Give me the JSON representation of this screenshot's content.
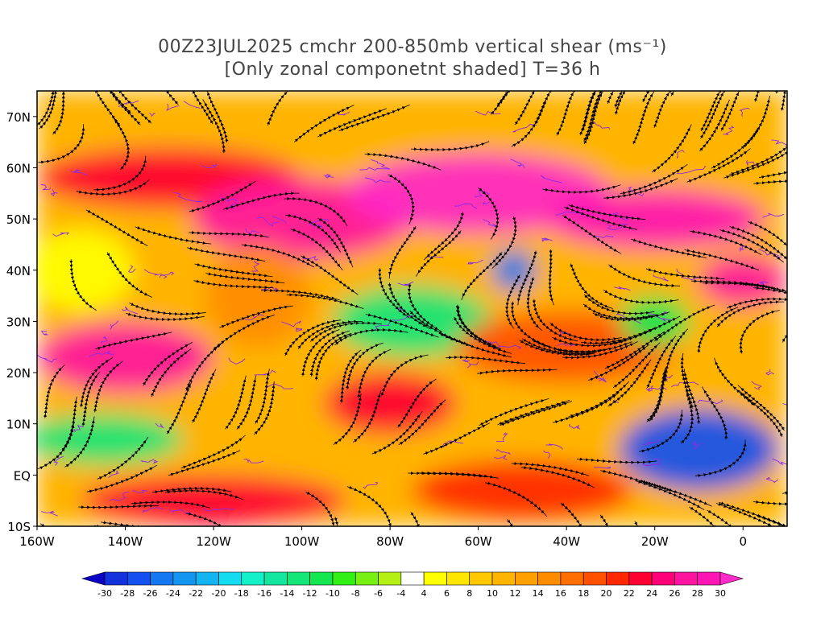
{
  "title": {
    "line1": "00Z23JUL2025 cmchr 200-850mb vertical shear (ms⁻¹)",
    "line2": "[Only zonal componetnt shaded] T=36 h"
  },
  "map": {
    "lat_range": [
      -10,
      75
    ],
    "lon_range": [
      -160,
      10
    ],
    "lat_ticks": [
      "70N",
      "60N",
      "50N",
      "40N",
      "30N",
      "20N",
      "10N",
      "EQ",
      "10S"
    ],
    "lat_values": [
      70,
      60,
      50,
      40,
      30,
      20,
      10,
      0,
      -10
    ],
    "lon_ticks": [
      "160W",
      "140W",
      "120W",
      "100W",
      "80W",
      "60W",
      "40W",
      "20W",
      "0"
    ],
    "lon_values": [
      -160,
      -140,
      -120,
      -100,
      -80,
      -60,
      -40,
      -20,
      0
    ]
  },
  "colorbar": {
    "labels": [
      "-30",
      "-28",
      "-26",
      "-24",
      "-22",
      "-20",
      "-18",
      "-16",
      "-14",
      "-12",
      "-10",
      "-8",
      "-6",
      "-4",
      "4",
      "6",
      "8",
      "10",
      "12",
      "14",
      "16",
      "18",
      "20",
      "22",
      "24",
      "26",
      "28",
      "30"
    ],
    "colors": [
      "#0a00c8",
      "#1432dc",
      "#1450f0",
      "#1478f0",
      "#1496f0",
      "#14b4f0",
      "#14dcf0",
      "#14f0c8",
      "#14e6a0",
      "#14e678",
      "#14e650",
      "#32f014",
      "#78f014",
      "#b4f014",
      "#ffffff",
      "#ffff00",
      "#ffe600",
      "#ffc800",
      "#ffb400",
      "#ffa000",
      "#ff8c00",
      "#ff6e00",
      "#ff5000",
      "#ff2800",
      "#ff0032",
      "#ff0078",
      "#ff14a0",
      "#ff14b4",
      "#ff28c8"
    ]
  },
  "shear_regions": [
    {
      "lon": -150,
      "lat": 40,
      "rx": 12,
      "ry": 8,
      "value": 4
    },
    {
      "lon": -130,
      "lat": 58,
      "rx": 30,
      "ry": 6,
      "value": 22
    },
    {
      "lon": -100,
      "lat": 50,
      "rx": 25,
      "ry": 8,
      "value": 26
    },
    {
      "lon": -60,
      "lat": 55,
      "rx": 30,
      "ry": 8,
      "value": 30
    },
    {
      "lon": -20,
      "lat": 50,
      "rx": 25,
      "ry": 6,
      "value": 28
    },
    {
      "lon": -140,
      "lat": 23,
      "rx": 20,
      "ry": 7,
      "value": 26
    },
    {
      "lon": -110,
      "lat": 35,
      "rx": 12,
      "ry": 10,
      "value": 14
    },
    {
      "lon": -75,
      "lat": 30,
      "rx": 18,
      "ry": 7,
      "value": -14
    },
    {
      "lon": -52,
      "lat": 40,
      "rx": 5,
      "ry": 4,
      "value": -26
    },
    {
      "lon": -40,
      "lat": 25,
      "rx": 25,
      "ry": 7,
      "value": 18
    },
    {
      "lon": -80,
      "lat": 14,
      "rx": 15,
      "ry": 6,
      "value": 22
    },
    {
      "lon": -145,
      "lat": 7,
      "rx": 18,
      "ry": 5,
      "value": -14
    },
    {
      "lon": -10,
      "lat": 5,
      "rx": 18,
      "ry": 8,
      "value": -28
    },
    {
      "lon": -120,
      "lat": -5,
      "rx": 30,
      "ry": 5,
      "value": 22
    },
    {
      "lon": -50,
      "lat": -3,
      "rx": 25,
      "ry": 6,
      "value": 20
    },
    {
      "lon": -20,
      "lat": 30,
      "rx": 8,
      "ry": 5,
      "value": -12
    },
    {
      "lon": 0,
      "lat": 38,
      "rx": 10,
      "ry": 5,
      "value": 26
    }
  ],
  "icons": {
    "streamline": "streamline-arrow",
    "contour": "contour-line"
  }
}
